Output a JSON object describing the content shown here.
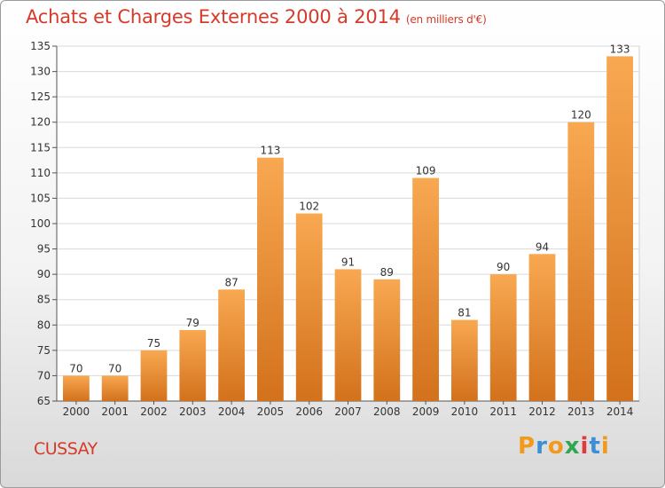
{
  "page": {
    "title": "Achats et Charges Externes 2000 à 2014",
    "unit": "(en milliers d'€)",
    "commune": "CUSSAY",
    "logo": "Proxiti"
  },
  "colors": {
    "title": "#d53a2a",
    "bar_light": "#f8a851",
    "bar_dark": "#d3711c",
    "logo_letters": [
      "#f29a1c",
      "#3a8fd6",
      "#f29a1c",
      "#2fa84f",
      "#e23a3a",
      "#3a8fd6",
      "#f29a1c"
    ]
  },
  "chart_data": {
    "type": "bar",
    "categories": [
      "2000",
      "2001",
      "2002",
      "2003",
      "2004",
      "2005",
      "2006",
      "2007",
      "2008",
      "2009",
      "2010",
      "2011",
      "2012",
      "2013",
      "2014"
    ],
    "values": [
      70,
      70,
      75,
      79,
      87,
      113,
      102,
      91,
      89,
      109,
      81,
      90,
      94,
      120,
      133
    ],
    "title": "Achats et Charges Externes 2000 à 2014",
    "ylim": [
      65,
      135
    ],
    "yticks": [
      65,
      70,
      75,
      80,
      85,
      90,
      95,
      100,
      105,
      110,
      115,
      120,
      125,
      130,
      135
    ],
    "grid": true,
    "legend": "none"
  }
}
